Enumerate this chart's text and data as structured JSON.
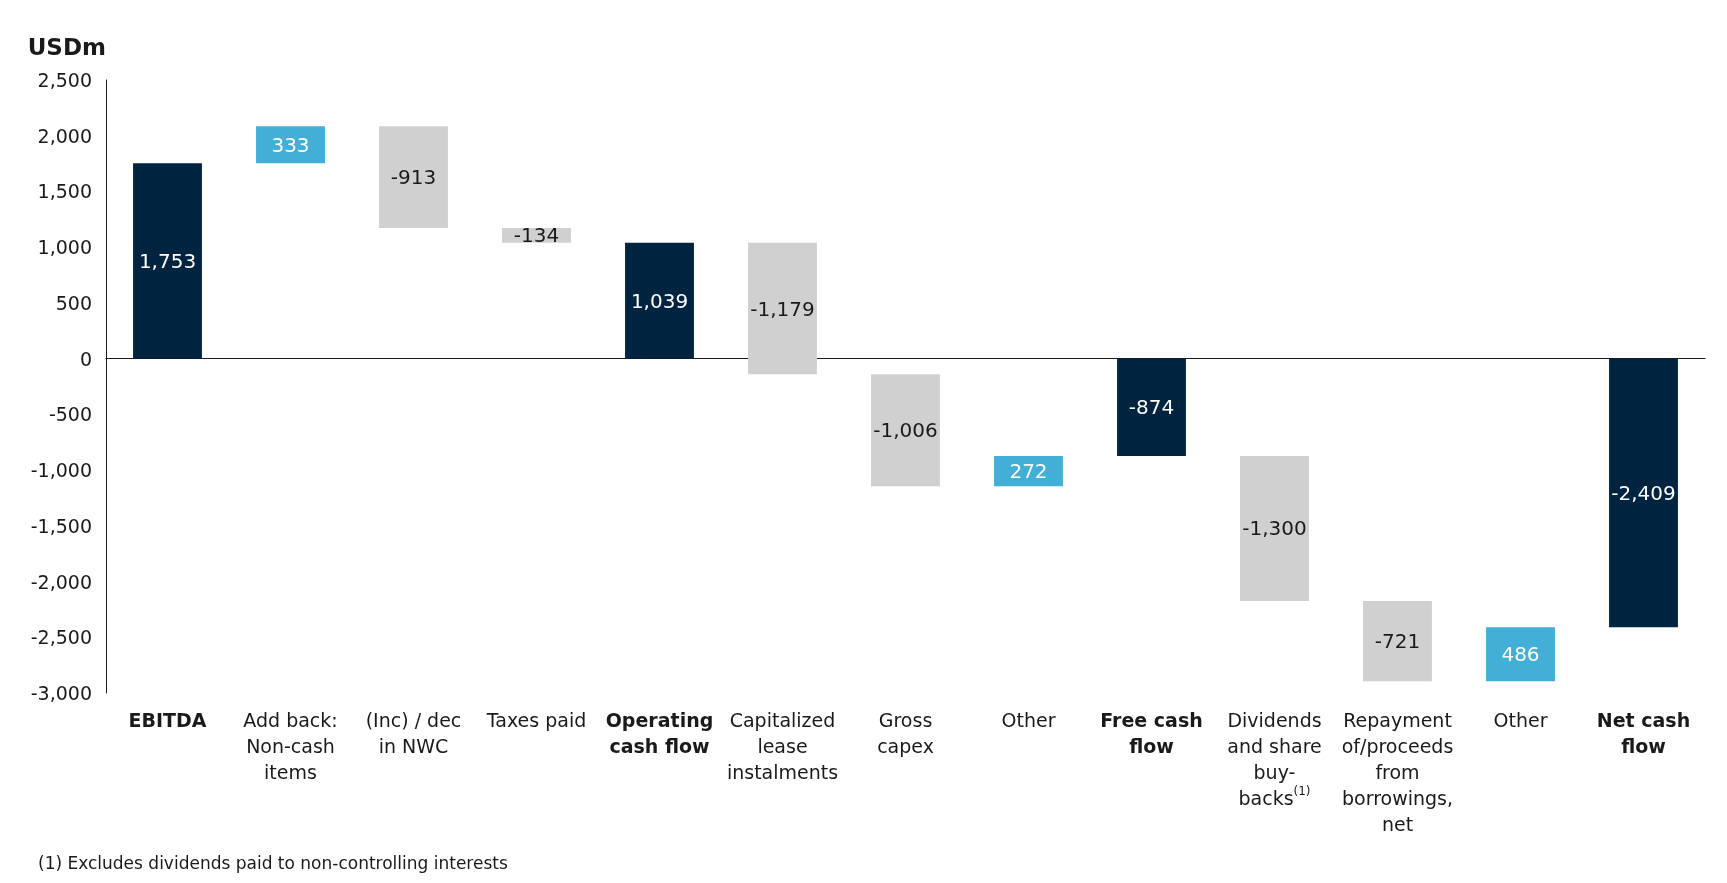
{
  "chart_data": {
    "type": "bar",
    "ylabel": "USDm",
    "categories": [
      "EBITDA",
      "Add back:\nNon-cash\nitems",
      "(Inc) / dec\nin NWC",
      "Taxes paid",
      "Operating\ncash flow",
      "Capitalized\nlease\ninstalments",
      "Gross\ncapex",
      "Other",
      "Free cash\nflow",
      "Dividends\nand share\nbuy-\nbacks$^{(1)}$",
      "Repayment\nof/proceeds\nfrom\nborrowings,\nnet",
      "Other",
      "Net cash\nflow"
    ],
    "values": [
      1753,
      333,
      -913,
      -134,
      1039,
      -1179,
      -1006,
      272,
      -874,
      -1300,
      -721,
      486,
      -2409
    ],
    "base": [
      0,
      1753,
      2086,
      1173,
      0,
      1039,
      -140,
      -1146,
      0,
      -874,
      -2174,
      -2895,
      0
    ],
    "colors": [
      "#002340",
      "#42afd6",
      "#d0d0d0",
      "#d0d0d0",
      "#002340",
      "#d0d0d0",
      "#d0d0d0",
      "#42afd6",
      "#002340",
      "#d0d0d0",
      "#d0d0d0",
      "#42afd6",
      "#002340"
    ],
    "value_labels": [
      "1,753",
      "333",
      "-913",
      "-134",
      "1,039",
      "-1,179",
      "-1,006",
      "272",
      "-874",
      "-1,300",
      "-721",
      "486",
      "-2,409"
    ],
    "ylim": [
      -3000,
      2500
    ],
    "yticks": [
      {
        "value": -3000,
        "label": "-3,000"
      },
      {
        "value": -2500,
        "label": "-2,500"
      },
      {
        "value": -2000,
        "label": "-2,000"
      },
      {
        "value": -1500,
        "label": "-1,500"
      },
      {
        "value": -1000,
        "label": "-1,000"
      },
      {
        "value": -500,
        "label": "-500"
      },
      0,
      500,
      {
        "value": 1000,
        "label": "1,000"
      },
      {
        "value": 1500,
        "label": "1,500"
      },
      {
        "value": 2000,
        "label": "2,000"
      },
      {
        "value": 2500,
        "label": "2,500"
      }
    ],
    "annotations": [
      "(1) Excludes dividends paid to non-controlling interests"
    ]
  }
}
